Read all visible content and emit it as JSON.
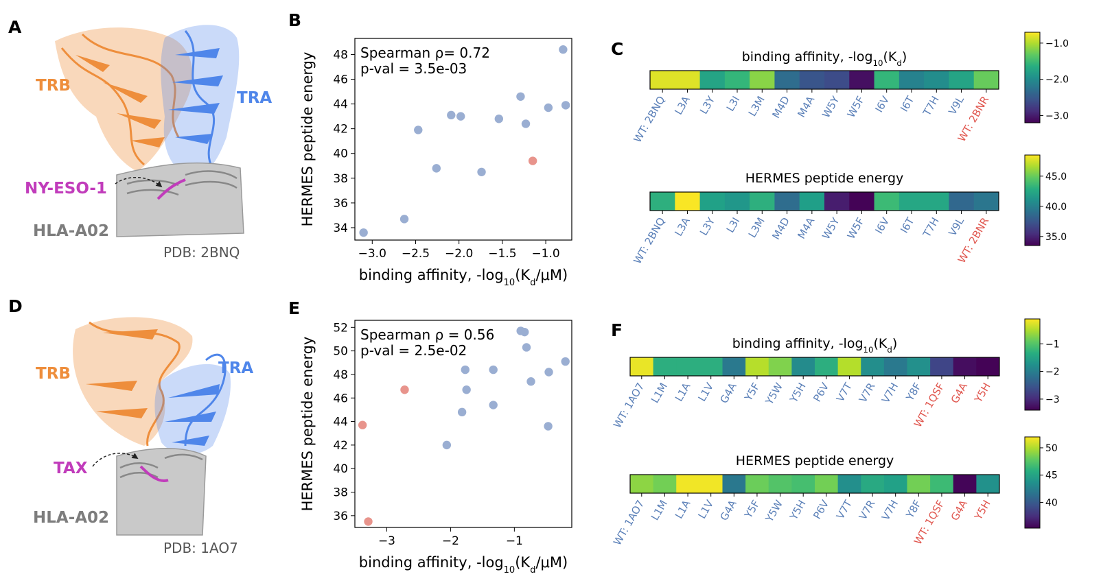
{
  "panel_letters": [
    "A",
    "B",
    "C",
    "D",
    "E",
    "F"
  ],
  "colors": {
    "wt_point": "#9aaed2",
    "alt_point": "#e8948c",
    "wt_label": "#5b80b8",
    "alt_label": "#e0574f",
    "trb": "#ee8e3c",
    "tra": "#4f86ea",
    "peptide": "#c13cbb",
    "hla": "#7d7d7d"
  },
  "structures": {
    "top": {
      "trb": "TRB",
      "tra": "TRA",
      "peptide": "NY-ESO-1",
      "hla": "HLA-A02",
      "pdb": "PDB: 2BNQ"
    },
    "bottom": {
      "trb": "TRB",
      "tra": "TRA",
      "peptide": "TAX",
      "hla": "HLA-A02",
      "pdb": "PDB: 1AO7"
    }
  },
  "chart_data": [
    {
      "id": "B",
      "type": "scatter",
      "xlabel": "binding affinity, -log10(Kd/μM)",
      "ylabel": "HERMES peptide energy",
      "stats": [
        "Spearman ρ= 0.72",
        "p-val = 3.5e-03"
      ],
      "xlim": [
        -3.2,
        -0.7
      ],
      "ylim": [
        33,
        49.3
      ],
      "xticks": [
        -3.0,
        -2.5,
        -2.0,
        -1.5,
        -1.0
      ],
      "xtick_labels": [
        "−3.0",
        "−2.5",
        "−2.0",
        "−1.5",
        "−1.0"
      ],
      "yticks": [
        34,
        36,
        38,
        40,
        42,
        44,
        46,
        48
      ],
      "ytick_labels": [
        "34",
        "36",
        "38",
        "40",
        "42",
        "44",
        "46",
        "48"
      ],
      "points": [
        {
          "x": -3.1,
          "y": 33.6,
          "group": "wt"
        },
        {
          "x": -2.63,
          "y": 34.7,
          "group": "wt"
        },
        {
          "x": -2.47,
          "y": 41.9,
          "group": "wt"
        },
        {
          "x": -2.26,
          "y": 38.8,
          "group": "wt"
        },
        {
          "x": -2.09,
          "y": 43.1,
          "group": "wt"
        },
        {
          "x": -1.98,
          "y": 43.0,
          "group": "wt"
        },
        {
          "x": -1.74,
          "y": 38.5,
          "group": "wt"
        },
        {
          "x": -1.54,
          "y": 42.8,
          "group": "wt"
        },
        {
          "x": -1.29,
          "y": 44.6,
          "group": "wt"
        },
        {
          "x": -1.23,
          "y": 42.4,
          "group": "wt"
        },
        {
          "x": -1.15,
          "y": 39.4,
          "group": "alt"
        },
        {
          "x": -0.97,
          "y": 43.7,
          "group": "wt"
        },
        {
          "x": -0.8,
          "y": 48.4,
          "group": "wt"
        },
        {
          "x": -0.77,
          "y": 43.9,
          "group": "wt"
        }
      ]
    },
    {
      "id": "E",
      "type": "scatter",
      "xlabel": "binding affinity, -log10(Kd/μM)",
      "ylabel": "HERMES peptide energy",
      "stats": [
        "Spearman ρ = 0.56",
        "p-val = 2.5e-02"
      ],
      "xlim": [
        -3.5,
        -0.1
      ],
      "ylim": [
        35.0,
        52.6
      ],
      "xticks": [
        -3,
        -2,
        -1
      ],
      "xtick_labels": [
        "−3",
        "−2",
        "−1"
      ],
      "yticks": [
        36,
        38,
        40,
        42,
        44,
        46,
        48,
        50,
        52
      ],
      "ytick_labels": [
        "36",
        "38",
        "40",
        "42",
        "44",
        "46",
        "48",
        "50",
        "52"
      ],
      "points": [
        {
          "x": -3.38,
          "y": 43.7,
          "group": "alt"
        },
        {
          "x": -3.29,
          "y": 35.5,
          "group": "alt"
        },
        {
          "x": -2.72,
          "y": 46.7,
          "group": "alt"
        },
        {
          "x": -2.06,
          "y": 42.0,
          "group": "wt"
        },
        {
          "x": -1.82,
          "y": 44.8,
          "group": "wt"
        },
        {
          "x": -1.77,
          "y": 48.4,
          "group": "wt"
        },
        {
          "x": -1.75,
          "y": 46.7,
          "group": "wt"
        },
        {
          "x": -1.33,
          "y": 48.4,
          "group": "wt"
        },
        {
          "x": -1.33,
          "y": 45.4,
          "group": "wt"
        },
        {
          "x": -0.9,
          "y": 51.7,
          "group": "wt"
        },
        {
          "x": -0.84,
          "y": 51.6,
          "group": "wt"
        },
        {
          "x": -0.81,
          "y": 50.3,
          "group": "wt"
        },
        {
          "x": -0.74,
          "y": 47.4,
          "group": "wt"
        },
        {
          "x": -0.46,
          "y": 48.2,
          "group": "wt"
        },
        {
          "x": -0.47,
          "y": 43.6,
          "group": "wt"
        },
        {
          "x": -0.2,
          "y": 49.1,
          "group": "wt"
        }
      ]
    },
    {
      "id": "C1",
      "type": "heatmap",
      "title": "binding affinity, -log10(Kd)",
      "labels": [
        "WT: 2BNQ",
        "L3A",
        "L3Y",
        "L3I",
        "L3M",
        "M4D",
        "M4A",
        "W5Y",
        "W5F",
        "I6V",
        "I6T",
        "T7H",
        "V9L",
        "WT: 2BNR"
      ],
      "label_groups": [
        "wt",
        "wt",
        "wt",
        "wt",
        "wt",
        "wt",
        "wt",
        "wt",
        "wt",
        "wt",
        "wt",
        "wt",
        "wt",
        "alt"
      ],
      "values": [
        -0.82,
        -0.82,
        -1.74,
        -1.55,
        -1.15,
        -2.31,
        -2.54,
        -2.63,
        -3.1,
        -1.55,
        -2.09,
        -1.98,
        -1.74,
        -1.29
      ],
      "vmin": -3.2,
      "vmax": -0.7,
      "colorbar_ticks": [
        -1.0,
        -2.0,
        -3.0
      ],
      "colorbar_labels": [
        "−1.0",
        "−2.0",
        "−3.0"
      ]
    },
    {
      "id": "C2",
      "type": "heatmap",
      "title": "HERMES peptide energy",
      "labels": [
        "WT: 2BNQ",
        "L3A",
        "L3Y",
        "L3I",
        "L3M",
        "M4D",
        "M4A",
        "W5Y",
        "W5F",
        "I6V",
        "I6T",
        "T7H",
        "V9L",
        "WT: 2BNR"
      ],
      "label_groups": [
        "wt",
        "wt",
        "wt",
        "wt",
        "wt",
        "wt",
        "wt",
        "wt",
        "wt",
        "wt",
        "wt",
        "wt",
        "wt",
        "alt"
      ],
      "values": [
        43.0,
        48.4,
        42.0,
        41.4,
        43.0,
        38.8,
        41.9,
        34.7,
        33.6,
        43.7,
        42.4,
        42.4,
        38.5,
        39.4
      ],
      "vmin": 33.5,
      "vmax": 48.5,
      "colorbar_ticks": [
        45.0,
        40.0,
        35.0
      ],
      "colorbar_labels": [
        "45.0",
        "40.0",
        "35.0"
      ]
    },
    {
      "id": "F1",
      "type": "heatmap",
      "title": "binding affinity, -log10(Kd)",
      "labels": [
        "WT: 1AO7",
        "L1M",
        "L1A",
        "L1V",
        "G4A",
        "Y5F",
        "Y5W",
        "Y5H",
        "P6V",
        "V7T",
        "V7R",
        "V7H",
        "Y8F",
        "WT: 1QSF",
        "G4A",
        "Y5H"
      ],
      "label_groups": [
        "wt",
        "wt",
        "wt",
        "wt",
        "wt",
        "wt",
        "wt",
        "wt",
        "wt",
        "wt",
        "wt",
        "wt",
        "wt",
        "alt",
        "alt",
        "alt"
      ],
      "values": [
        -0.2,
        -1.33,
        -1.33,
        -1.33,
        -2.06,
        -0.46,
        -0.74,
        -1.82,
        -1.33,
        -0.47,
        -1.77,
        -2.06,
        -1.75,
        -2.72,
        -3.29,
        -3.38
      ],
      "vmin": -3.4,
      "vmax": -0.1,
      "colorbar_ticks": [
        -1,
        -2,
        -3
      ],
      "colorbar_labels": [
        "−1",
        "−2",
        "−3"
      ]
    },
    {
      "id": "F2",
      "type": "heatmap",
      "title": "HERMES peptide energy",
      "labels": [
        "WT: 1AO7",
        "L1M",
        "L1A",
        "L1V",
        "G4A",
        "Y5F",
        "Y5W",
        "Y5H",
        "P6V",
        "V7T",
        "V7R",
        "V7H",
        "Y8F",
        "WT: 1QSF",
        "G4A",
        "Y5H"
      ],
      "label_groups": [
        "wt",
        "wt",
        "wt",
        "wt",
        "wt",
        "wt",
        "wt",
        "wt",
        "wt",
        "wt",
        "wt",
        "wt",
        "wt",
        "alt",
        "alt",
        "alt"
      ],
      "values": [
        49.1,
        48.4,
        51.7,
        51.7,
        42.0,
        48.2,
        47.4,
        47.0,
        48.4,
        43.6,
        45.4,
        44.8,
        48.4,
        46.7,
        35.5,
        43.7
      ],
      "vmin": 35.3,
      "vmax": 52.0,
      "colorbar_ticks": [
        50,
        45,
        40
      ],
      "colorbar_labels": [
        "50",
        "45",
        "40"
      ]
    }
  ]
}
